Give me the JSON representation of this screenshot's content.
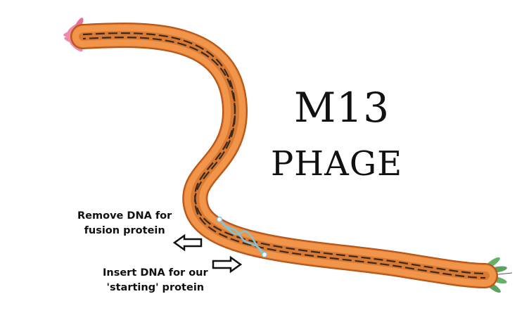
{
  "title": {
    "line1": "M13",
    "line2": "PHAGE"
  },
  "annotations": {
    "remove": {
      "line1": "Remove DNA for",
      "line2": "fusion protein",
      "arrow": "left-arrow-icon"
    },
    "insert": {
      "line1": "Insert DNA for our",
      "line2": "'starting' protein",
      "arrow": "right-arrow-icon"
    }
  },
  "colors": {
    "coat": "#e27a2c",
    "coat_dark": "#b4551a",
    "dna": "#3a2a1e",
    "inserted_dna": "#7fc4d8",
    "head_proteins": "#ee8aa6",
    "tail_proteins": "#67b06a",
    "tail_core": "#f2c444"
  }
}
